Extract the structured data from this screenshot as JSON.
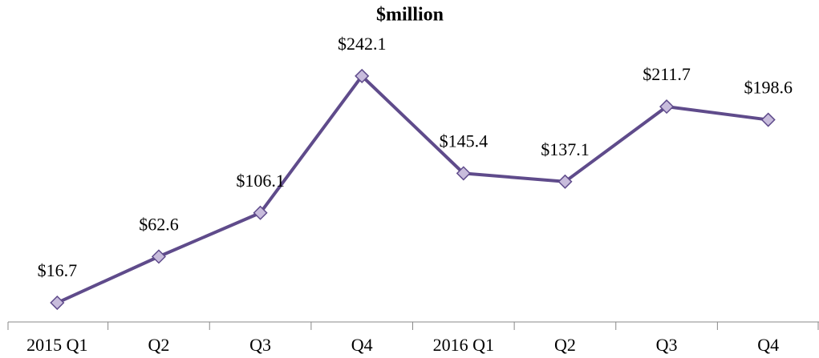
{
  "chart_data": {
    "type": "line",
    "title": "$million",
    "categories": [
      "2015 Q1",
      "Q2",
      "Q3",
      "Q4",
      "2016 Q1",
      "Q2",
      "Q3",
      "Q4"
    ],
    "series": [
      {
        "name": "$million",
        "color": "#5f4b8b",
        "values": [
          16.7,
          62.6,
          106.1,
          242.1,
          145.4,
          137.1,
          211.7,
          198.6
        ],
        "value_labels": [
          "$16.7",
          "$62.6",
          "$106.1",
          "$242.1",
          "$145.4",
          "$137.1",
          "$211.7",
          "$198.6"
        ]
      }
    ],
    "marker_color": "#c8bcdc",
    "ylim": [
      0,
      250
    ]
  }
}
